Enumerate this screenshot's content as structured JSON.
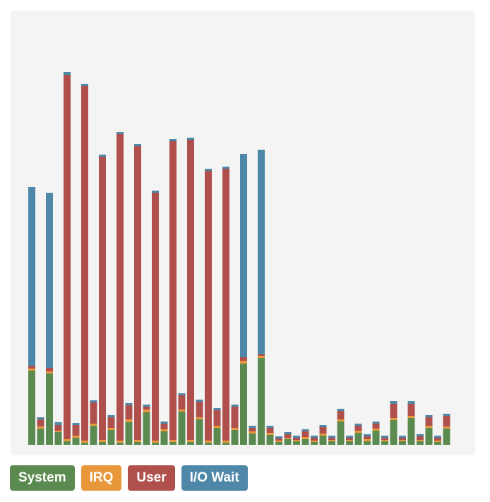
{
  "chart_data": {
    "type": "bar",
    "stacked": true,
    "ylim": [
      0,
      540
    ],
    "series": [
      {
        "name": "System",
        "color": "#5a8a50",
        "values": [
          105,
          23,
          101,
          18,
          5,
          10,
          3,
          27,
          4,
          21,
          3,
          32,
          4,
          46,
          3,
          19,
          4,
          47,
          4,
          36,
          3,
          24,
          3,
          21,
          115,
          16,
          123,
          14,
          4,
          8,
          5,
          8,
          4,
          13,
          5,
          33,
          5,
          17,
          5,
          20,
          5,
          35,
          5,
          38,
          5,
          24,
          4,
          23
        ]
      },
      {
        "name": "IRQ",
        "color": "#e8973a",
        "values": [
          3,
          3,
          3,
          2,
          3,
          3,
          3,
          3,
          3,
          3,
          3,
          4,
          3,
          4,
          3,
          3,
          3,
          3,
          3,
          3,
          3,
          3,
          3,
          3,
          4,
          3,
          3,
          3,
          2,
          2,
          2,
          3,
          2,
          3,
          2,
          3,
          2,
          3,
          3,
          3,
          2,
          3,
          2,
          3,
          2,
          3,
          2,
          3
        ]
      },
      {
        "name": "User",
        "color": "#b0504c",
        "values": [
          4,
          10,
          5,
          8,
          516,
          15,
          502,
          30,
          401,
          15,
          434,
          20,
          416,
          4,
          351,
          8,
          423,
          20,
          425,
          22,
          382,
          22,
          385,
          30,
          5,
          5,
          2,
          7,
          3,
          5,
          3,
          8,
          4,
          9,
          3,
          12,
          3,
          7,
          4,
          7,
          3,
          20,
          3,
          17,
          5,
          12,
          4,
          15
        ]
      },
      {
        "name": "I/O Wait",
        "color": "#4f87a8",
        "values": [
          253,
          3,
          248,
          4,
          4,
          3,
          3,
          3,
          3,
          3,
          3,
          3,
          3,
          3,
          3,
          3,
          3,
          3,
          3,
          3,
          3,
          3,
          3,
          3,
          288,
          3,
          290,
          3,
          3,
          3,
          3,
          3,
          3,
          3,
          3,
          3,
          3,
          3,
          3,
          3,
          3,
          4,
          3,
          4,
          3,
          3,
          3,
          3
        ]
      }
    ]
  }
}
